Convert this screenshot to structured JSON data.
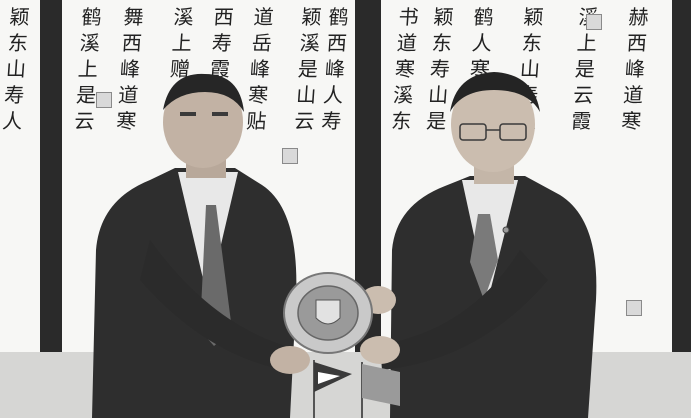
{
  "scene": {
    "calligraphy_columns": [
      "颖东山寿人",
      "鹤溪上是云",
      "舞西峰道寒",
      "溪上赠人翰",
      "西寿霞书赫",
      "道岳峰寒贴",
      "颖溪是山云",
      "鹤西峰人寿",
      "书道寒溪东",
      "颖东寿山是",
      "鹤人寒峰书",
      "颖东山寿人",
      "溪上是云霞",
      "赫西峰道寒"
    ],
    "colors": {
      "frame": "#2a2a2a",
      "paper": "#f7f7f5",
      "ink": "#222222",
      "suit": "#2e2e2e",
      "shirt": "#e8e8e8",
      "plate": "#c9c9c9"
    },
    "icons": [
      "commemorative-plate-icon",
      "table-flag-icon",
      "lapel-pin-icon"
    ]
  }
}
